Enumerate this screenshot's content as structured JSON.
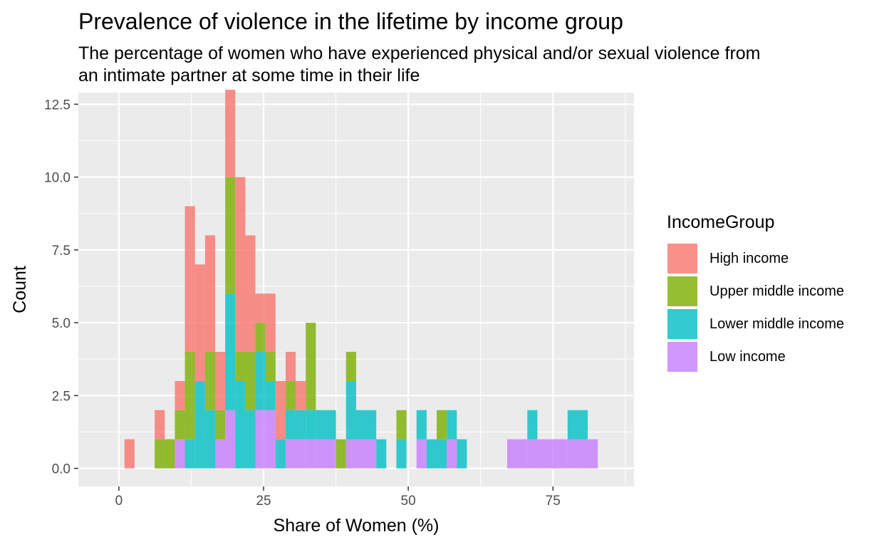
{
  "title": "Prevalence of violence in the lifetime by income group",
  "subtitle": "The percentage of women who have experienced physical and/or sexual violence from an intimate partner at some time in their life",
  "chart_data": {
    "type": "histogram",
    "stacked": true,
    "xlabel": "Share of Women (%)",
    "ylabel": "Count",
    "xlim": [
      -7,
      89
    ],
    "ylim": [
      -0.62,
      12.9
    ],
    "x_ticks": [
      0,
      25,
      50,
      75
    ],
    "y_ticks": [
      0.0,
      2.5,
      5.0,
      7.5,
      10.0,
      12.5
    ],
    "y_tick_labels": [
      "0.0",
      "2.5",
      "5.0",
      "7.5",
      "10.0",
      "12.5"
    ],
    "bin_width": 1.74,
    "first_bin_start": 0.97,
    "legend_title": "IncomeGroup",
    "legend_position": "right",
    "grid": true,
    "series": [
      {
        "name": "High income",
        "color": "#F8766D",
        "bins": {
          "0": 1,
          "3": 1,
          "5": 1,
          "6": 5,
          "7": 4,
          "8": 4,
          "9": 2,
          "10": 3,
          "11": 6,
          "12": 4,
          "13": 1,
          "14": 2,
          "15": 2,
          "16": 1,
          "17": 1,
          "18": 0
        }
      },
      {
        "name": "Upper middle income",
        "color": "#7CAE00",
        "bins": {
          "3": 1,
          "4": 1,
          "5": 1,
          "6": 3,
          "8": 2,
          "9": 1,
          "10": 4,
          "11": 1,
          "12": 2,
          "13": 1,
          "14": 1,
          "16": 1,
          "18": 3,
          "21": 1,
          "22": 1,
          "27": 1,
          "31": 1
        }
      },
      {
        "name": "Lower middle income",
        "color": "#00BFC4",
        "bins": {
          "6": 1,
          "7": 3,
          "8": 2,
          "10": 4,
          "11": 3,
          "12": 2,
          "13": 2,
          "14": 1,
          "15": 1,
          "16": 1,
          "17": 1,
          "18": 1,
          "19": 1,
          "20": 1,
          "22": 2,
          "23": 1,
          "24": 1,
          "25": 1,
          "27": 1,
          "29": 1,
          "30": 1,
          "31": 1,
          "32": 1,
          "33": 1,
          "40": 1,
          "44": 1,
          "45": 1
        }
      },
      {
        "name": "Low income",
        "color": "#C77CFF",
        "bins": {
          "5": 1,
          "9": 1,
          "10": 2,
          "13": 2,
          "14": 2,
          "16": 1,
          "17": 1,
          "18": 1,
          "19": 1,
          "20": 1,
          "22": 1,
          "23": 1,
          "24": 1,
          "29": 1,
          "32": 1,
          "38": 1,
          "39": 1,
          "40": 1,
          "41": 1,
          "42": 1,
          "43": 1,
          "44": 1,
          "45": 1,
          "46": 1
        }
      }
    ]
  }
}
